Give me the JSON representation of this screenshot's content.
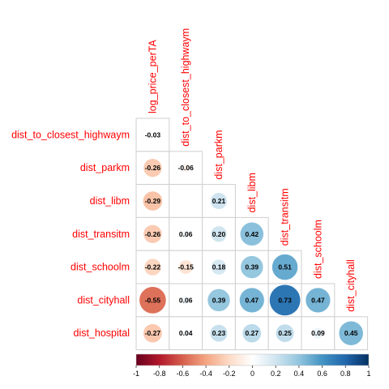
{
  "chart_data": {
    "type": "heatmap",
    "variant": "correlation-matrix-lower-triangle",
    "row_labels": [
      "dist_to_closest_highwaym",
      "dist_parkm",
      "dist_libm",
      "dist_transitm",
      "dist_schoolm",
      "dist_cityhall",
      "dist_hospital"
    ],
    "col_labels": [
      "log_price_perTA",
      "dist_to_closest_highwaym",
      "dist_parkm",
      "dist_libm",
      "dist_transitm",
      "dist_schoolm",
      "dist_cityhall"
    ],
    "values": [
      [
        -0.03,
        null,
        null,
        null,
        null,
        null,
        null
      ],
      [
        -0.26,
        -0.06,
        null,
        null,
        null,
        null,
        null
      ],
      [
        -0.29,
        null,
        0.21,
        null,
        null,
        null,
        null
      ],
      [
        -0.26,
        0.06,
        0.2,
        0.42,
        null,
        null,
        null
      ],
      [
        -0.22,
        -0.15,
        0.18,
        0.39,
        0.51,
        null,
        null
      ],
      [
        -0.55,
        0.06,
        0.39,
        0.47,
        0.73,
        0.47,
        null
      ],
      [
        -0.27,
        0.04,
        0.23,
        0.27,
        0.25,
        0.09,
        0.45
      ]
    ],
    "display_values": [
      [
        "-0.03"
      ],
      [
        "-0.26",
        "-0.06"
      ],
      [
        "-0.29",
        "",
        "0.21"
      ],
      [
        "-0.26",
        "0.06",
        "0.20",
        "0.42"
      ],
      [
        "-0.22",
        "-0.15",
        "0.18",
        "0.39",
        "0.51"
      ],
      [
        "-0.55",
        "0.06",
        "0.39",
        "0.47",
        "0.73",
        "0.47"
      ],
      [
        "-0.27",
        "0.04",
        "0.23",
        "0.27",
        "0.25",
        "0.09",
        "0.45"
      ]
    ],
    "colorbar": {
      "range": [
        -1,
        1
      ],
      "ticks": [
        "-1",
        "-0.8",
        "-0.6",
        "-0.4",
        "-0.2",
        "0",
        "0.2",
        "0.4",
        "0.6",
        "0.8",
        "1"
      ],
      "colors": [
        "#67001f",
        "#b2182b",
        "#d6604d",
        "#f4a582",
        "#fddbc7",
        "#ffffff",
        "#d1e5f0",
        "#92c5de",
        "#4393c3",
        "#2166ac",
        "#053061"
      ]
    },
    "label_color": "#ff0000"
  }
}
